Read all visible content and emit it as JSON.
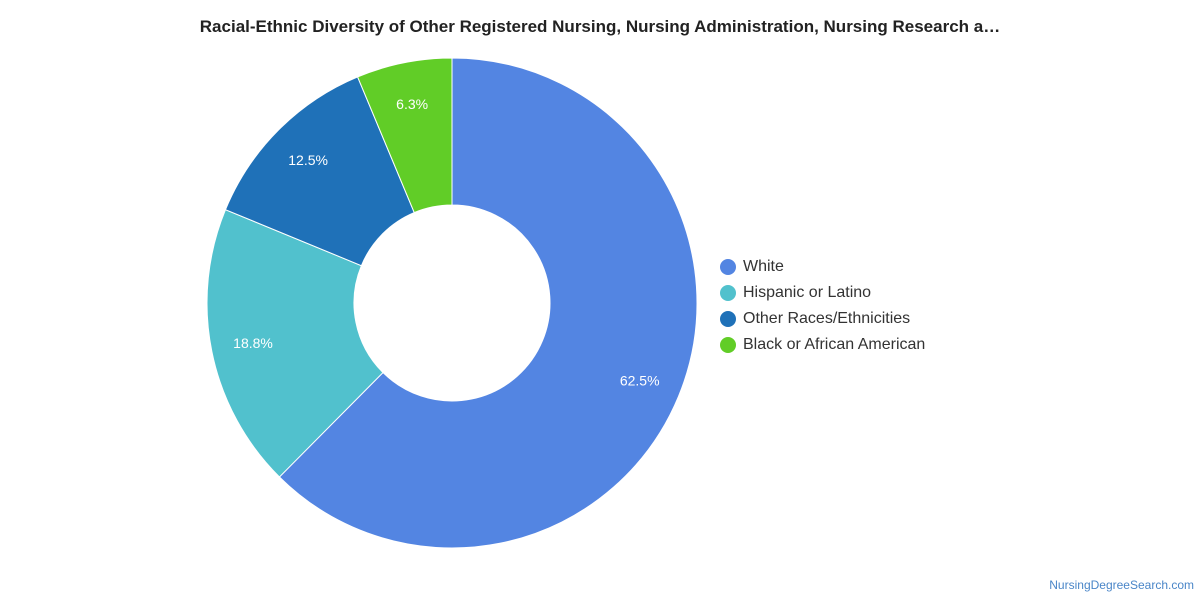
{
  "chart_data": {
    "type": "pie",
    "title": "Racial-Ethnic Diversity of Other Registered Nursing, Nursing Administration, Nursing Research a…",
    "donut": true,
    "categories": [
      "White",
      "Hispanic or Latino",
      "Other Races/Ethnicities",
      "Black or African American"
    ],
    "values": [
      62.5,
      18.8,
      12.5,
      6.3
    ],
    "value_labels": [
      "62.5%",
      "18.8%",
      "12.5%",
      "6.3%"
    ],
    "colors": [
      "#5385e2",
      "#51c1cd",
      "#1f71b8",
      "#61cd27"
    ],
    "legend_position": "right"
  },
  "credit": "NursingDegreeSearch.com"
}
